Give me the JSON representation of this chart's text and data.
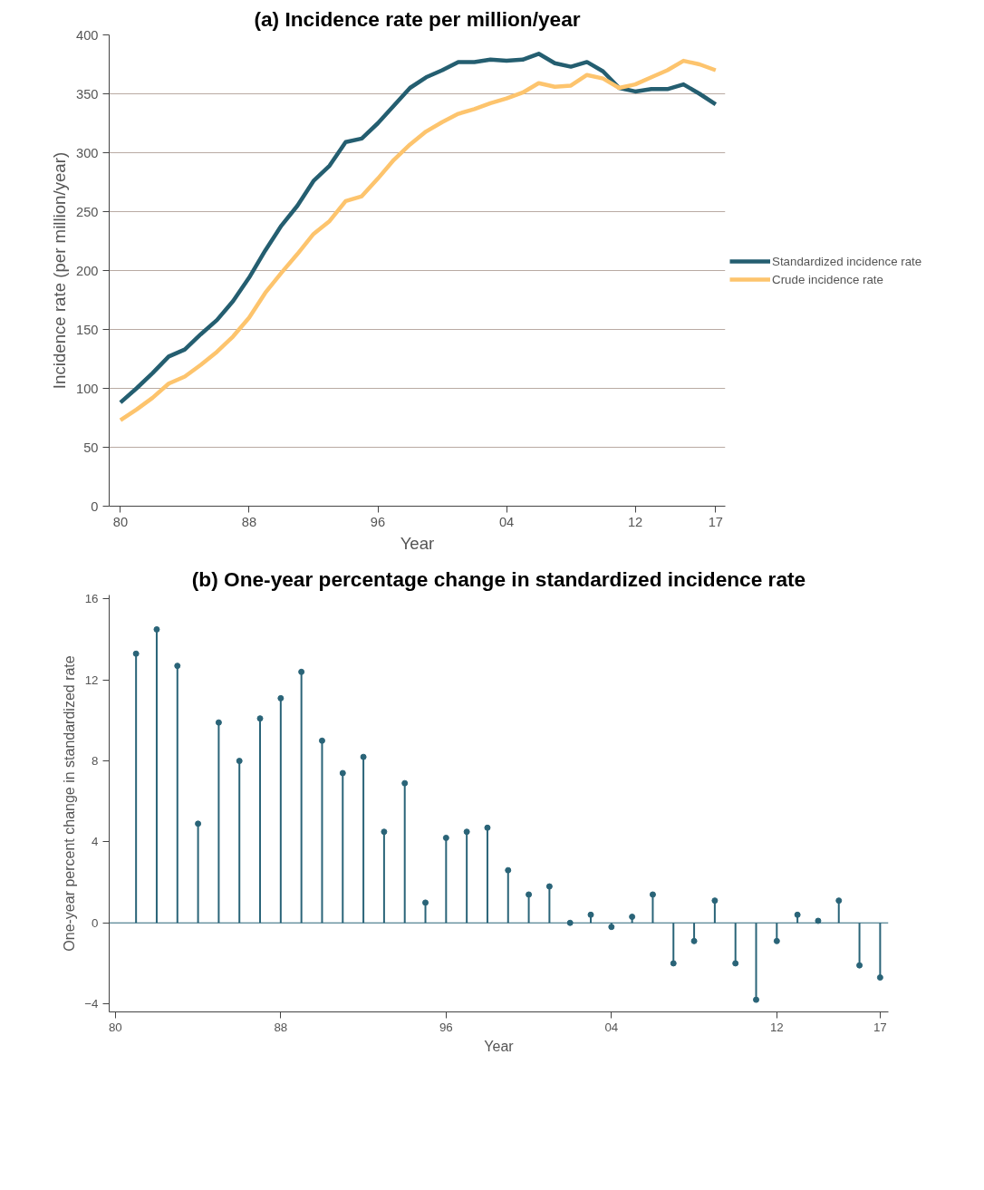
{
  "chart_data": [
    {
      "type": "line",
      "title": "(a) Incidence rate per million/year",
      "xlabel": "Year",
      "ylabel": "Incidence rate (per million/year)",
      "x": [
        1980,
        1981,
        1982,
        1983,
        1984,
        1985,
        1986,
        1987,
        1988,
        1989,
        1990,
        1991,
        1992,
        1993,
        1994,
        1995,
        1996,
        1997,
        1998,
        1999,
        2000,
        2001,
        2002,
        2003,
        2004,
        2005,
        2006,
        2007,
        2008,
        2009,
        2010,
        2011,
        2012,
        2013,
        2014,
        2015,
        2016,
        2017
      ],
      "series": [
        {
          "name": "Standardized incidence rate",
          "color": "#245e70",
          "values": [
            88,
            100,
            113,
            127,
            133,
            146,
            158,
            174,
            194,
            217,
            238,
            255,
            276,
            289,
            309,
            312,
            325,
            340,
            355,
            364,
            370,
            377,
            377,
            379,
            378,
            379,
            384,
            376,
            373,
            377,
            369,
            355,
            352,
            354,
            354,
            358,
            350,
            341
          ]
        },
        {
          "name": "Crude incidence rate",
          "color": "#fdc46d",
          "values": [
            73,
            82,
            92,
            104,
            110,
            120,
            131,
            144,
            160,
            181,
            198,
            214,
            231,
            242,
            259,
            263,
            278,
            294,
            307,
            318,
            326,
            333,
            337,
            342,
            346,
            351,
            359,
            356,
            357,
            366,
            363,
            355,
            358,
            364,
            370,
            378,
            375,
            370
          ]
        }
      ],
      "xlim": [
        1979.3,
        2017.6
      ],
      "xticks": [
        {
          "value": 1980,
          "label": "80"
        },
        {
          "value": 1988,
          "label": "88"
        },
        {
          "value": 1996,
          "label": "96"
        },
        {
          "value": 2004,
          "label": "04"
        },
        {
          "value": 2012,
          "label": "12"
        },
        {
          "value": 2017,
          "label": "17"
        }
      ],
      "ylim": [
        0,
        400
      ],
      "yticks": [
        0,
        50,
        100,
        150,
        200,
        250,
        300,
        350,
        400
      ],
      "grid": "y",
      "legend": "right",
      "line_style": "solid"
    },
    {
      "type": "lollipop",
      "title": "(b) One-year percentage change in standardized incidence rate",
      "xlabel": "Year",
      "ylabel": "One-year percent change in standardized rate",
      "x": [
        1981,
        1982,
        1983,
        1984,
        1985,
        1986,
        1987,
        1988,
        1989,
        1990,
        1991,
        1992,
        1993,
        1994,
        1995,
        1996,
        1997,
        1998,
        1999,
        2000,
        2001,
        2002,
        2003,
        2004,
        2005,
        2006,
        2007,
        2008,
        2009,
        2010,
        2011,
        2012,
        2013,
        2014,
        2015,
        2016,
        2017
      ],
      "series": [
        {
          "color": "#2a6478",
          "values": [
            13.3,
            14.5,
            12.7,
            4.9,
            9.9,
            8.0,
            10.1,
            11.1,
            12.4,
            9.0,
            7.4,
            8.2,
            4.5,
            6.9,
            1.0,
            4.2,
            4.5,
            4.7,
            2.6,
            1.4,
            1.8,
            0.0,
            0.4,
            -0.2,
            0.3,
            1.4,
            -2.0,
            -0.9,
            1.1,
            -2.0,
            -3.8,
            -0.9,
            0.4,
            0.1,
            1.1,
            -2.1,
            -2.7
          ]
        }
      ],
      "xlim": [
        1979.7,
        2017.4
      ],
      "xticks": [
        {
          "value": 1980,
          "label": "80"
        },
        {
          "value": 1988,
          "label": "88"
        },
        {
          "value": 1996,
          "label": "96"
        },
        {
          "value": 2004,
          "label": "04"
        },
        {
          "value": 2012,
          "label": "12"
        },
        {
          "value": 2017,
          "label": "17"
        }
      ],
      "ylim": [
        -4.4,
        16.2
      ],
      "yticks": [
        -4,
        0,
        4,
        8,
        12,
        16
      ],
      "ref_lines": [
        {
          "axis": "y",
          "value": 0,
          "color": "#2a6478"
        }
      ],
      "grid": false,
      "marker": "circle"
    }
  ]
}
